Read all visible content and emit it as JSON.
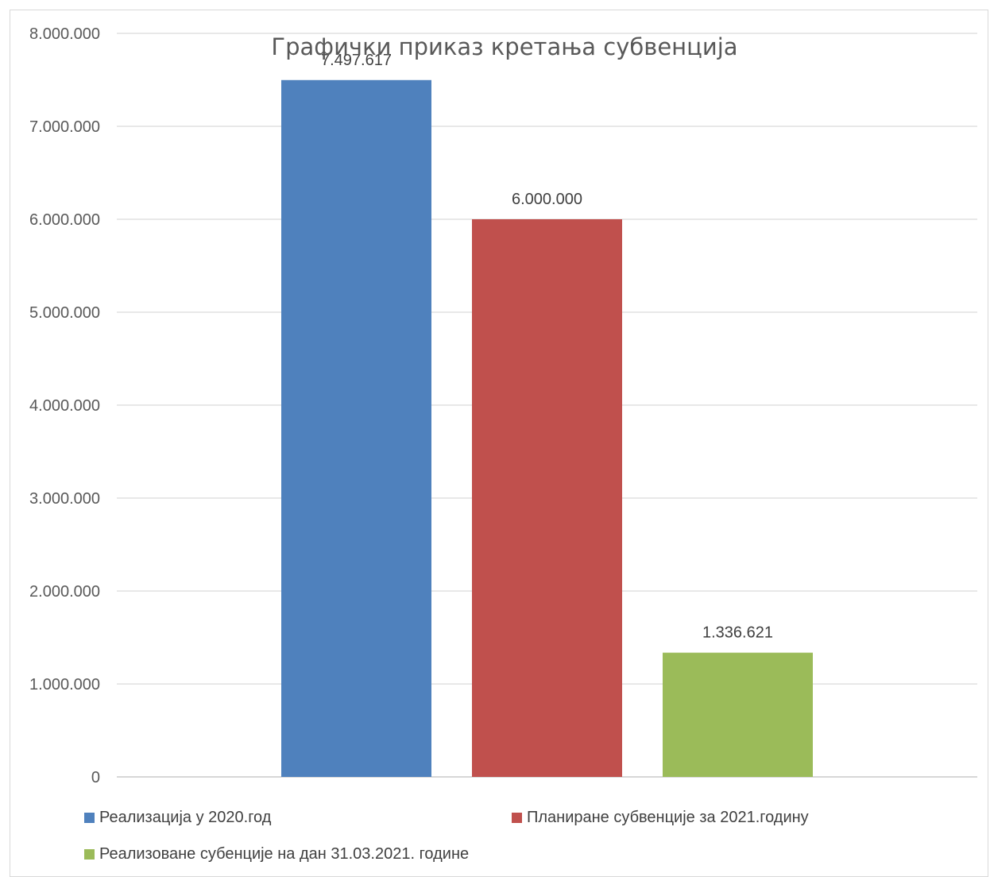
{
  "chart_data": {
    "type": "bar",
    "title": "Графички приказ кретања субвенција",
    "ylim": [
      0,
      8000000
    ],
    "y_ticks": [
      "0",
      "1.000.000",
      "2.000.000",
      "3.000.000",
      "4.000.000",
      "5.000.000",
      "6.000.000",
      "7.000.000",
      "8.000.000"
    ],
    "grid": true,
    "legend_position": "bottom",
    "series": [
      {
        "name": "Реализација у 2020.год",
        "value": 7497617,
        "label": "7.497.617",
        "color": "#4f81bd"
      },
      {
        "name": "Планиране субвенције за 2021.годину",
        "value": 6000000,
        "label": "6.000.000",
        "color": "#c0504d"
      },
      {
        "name": "Реализоване субенције на дан 31.03.2021. године",
        "value": 1336621,
        "label": "1.336.621",
        "color": "#9bbb59"
      }
    ]
  }
}
